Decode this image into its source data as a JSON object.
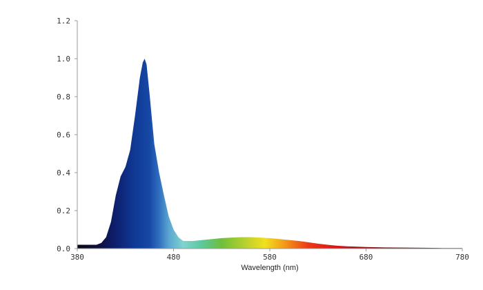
{
  "chart_data": {
    "type": "area",
    "title": "",
    "xlabel": "Wavelength (nm)",
    "ylabel": "",
    "xlim": [
      380,
      780
    ],
    "ylim": [
      0,
      1.2
    ],
    "grid": false,
    "legend": "none",
    "x_ticks": [
      {
        "value": 380,
        "label": "380"
      },
      {
        "value": 480,
        "label": "480"
      },
      {
        "value": 580,
        "label": "580"
      },
      {
        "value": 680,
        "label": "680"
      },
      {
        "value": 780,
        "label": "780"
      }
    ],
    "y_ticks": [
      {
        "value": 0.0,
        "label": "0.0"
      },
      {
        "value": 0.2,
        "label": "0.2"
      },
      {
        "value": 0.4,
        "label": "0.4"
      },
      {
        "value": 0.6,
        "label": "0.6"
      },
      {
        "value": 0.8,
        "label": "0.8"
      },
      {
        "value": 1.0,
        "label": "1.0"
      },
      {
        "value": 1.2,
        "label": "1.2"
      }
    ],
    "series": [
      {
        "x": [
          380,
          390,
          400,
          405,
          410,
          415,
          420,
          425,
          430,
          435,
          440,
          445,
          448,
          450,
          452,
          455,
          460,
          465,
          470,
          475,
          480,
          485,
          490,
          500,
          510,
          520,
          530,
          540,
          550,
          560,
          570,
          580,
          590,
          600,
          610,
          620,
          630,
          640,
          650,
          660,
          670,
          680,
          700,
          720,
          740,
          760,
          780
        ],
        "y": [
          0.02,
          0.02,
          0.02,
          0.03,
          0.06,
          0.14,
          0.28,
          0.38,
          0.43,
          0.52,
          0.7,
          0.9,
          0.98,
          1.0,
          0.97,
          0.82,
          0.55,
          0.4,
          0.28,
          0.17,
          0.1,
          0.06,
          0.04,
          0.04,
          0.045,
          0.05,
          0.055,
          0.058,
          0.06,
          0.06,
          0.058,
          0.055,
          0.05,
          0.045,
          0.04,
          0.033,
          0.026,
          0.02,
          0.015,
          0.012,
          0.01,
          0.008,
          0.006,
          0.005,
          0.004,
          0.003,
          0.003
        ]
      }
    ],
    "spectrum_gradient": [
      {
        "x": 380,
        "color": "#0a0a14"
      },
      {
        "x": 400,
        "color": "#0d0f38"
      },
      {
        "x": 420,
        "color": "#0e1f6e"
      },
      {
        "x": 440,
        "color": "#0f3a96"
      },
      {
        "x": 455,
        "color": "#1748a6"
      },
      {
        "x": 465,
        "color": "#2f6fbe"
      },
      {
        "x": 475,
        "color": "#5aa5d0"
      },
      {
        "x": 490,
        "color": "#7fd4cf"
      },
      {
        "x": 510,
        "color": "#5cc79a"
      },
      {
        "x": 530,
        "color": "#6fbf3a"
      },
      {
        "x": 560,
        "color": "#c8d42a"
      },
      {
        "x": 575,
        "color": "#f2e01d"
      },
      {
        "x": 595,
        "color": "#f39a1a"
      },
      {
        "x": 620,
        "color": "#ea3a17"
      },
      {
        "x": 650,
        "color": "#d8141a"
      },
      {
        "x": 690,
        "color": "#7a1010"
      },
      {
        "x": 740,
        "color": "#3a1010"
      },
      {
        "x": 780,
        "color": "#222222"
      }
    ]
  }
}
